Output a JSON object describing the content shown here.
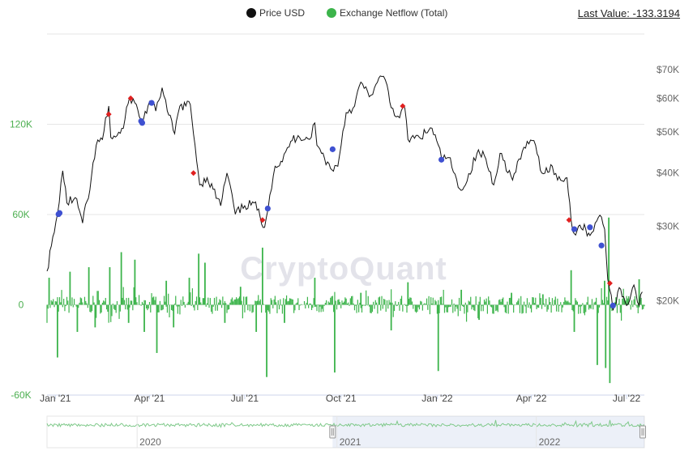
{
  "legend": {
    "price_label": "Price USD",
    "netflow_label": "Exchange Netflow (Total)",
    "last_value": "Last Value: -133.3194"
  },
  "watermark": "CryptoQuant",
  "colors": {
    "price": "#111111",
    "netflow": "#3cb44b",
    "left_axis_text": "#4caf50",
    "right_axis_text": "#666666",
    "buy_marker": "#3f51d1",
    "sell_marker": "#e02020",
    "grid": "#e6e6e6"
  },
  "chart_data": {
    "type": "line",
    "x_range": [
      "2020-12-24",
      "2022-07-18"
    ],
    "x_ticks": [
      {
        "label": "Jan '21",
        "date": "2021-01-01"
      },
      {
        "label": "Apr '21",
        "date": "2021-04-01"
      },
      {
        "label": "Jul '21",
        "date": "2021-07-01"
      },
      {
        "label": "Oct '21",
        "date": "2021-10-01"
      },
      {
        "label": "Jan '22",
        "date": "2022-01-01"
      },
      {
        "label": "Apr '22",
        "date": "2022-04-01"
      },
      {
        "label": "Jul '22",
        "date": "2022-07-01"
      }
    ],
    "left_axis": {
      "ylim": [
        -60000,
        180000
      ],
      "ticks": [
        -60000,
        0,
        60000,
        120000
      ],
      "labels": [
        "-60K",
        "0",
        "60K",
        "120K"
      ]
    },
    "right_axis": {
      "scale": "log",
      "ylim": [
        12000,
        85000
      ],
      "ticks": [
        20000,
        30000,
        40000,
        50000,
        60000,
        70000
      ],
      "labels": [
        "$20K",
        "$30K",
        "$40K",
        "$50K",
        "$60K",
        "$70K"
      ]
    },
    "price_series": {
      "name": "Price USD",
      "points": [
        [
          "2020-12-24",
          23500
        ],
        [
          "2020-12-31",
          29000
        ],
        [
          "2021-01-03",
          32000
        ],
        [
          "2021-01-08",
          40500
        ],
        [
          "2021-01-12",
          34000
        ],
        [
          "2021-01-20",
          35000
        ],
        [
          "2021-01-27",
          30500
        ],
        [
          "2021-02-03",
          36500
        ],
        [
          "2021-02-09",
          46500
        ],
        [
          "2021-02-15",
          48000
        ],
        [
          "2021-02-21",
          57500
        ],
        [
          "2021-02-23",
          48500
        ],
        [
          "2021-03-01",
          49000
        ],
        [
          "2021-03-07",
          51000
        ],
        [
          "2021-03-13",
          60500
        ],
        [
          "2021-03-18",
          58500
        ],
        [
          "2021-03-25",
          52500
        ],
        [
          "2021-04-01",
          59000
        ],
        [
          "2021-04-07",
          56000
        ],
        [
          "2021-04-13",
          63500
        ],
        [
          "2021-04-18",
          56000
        ],
        [
          "2021-04-25",
          49500
        ],
        [
          "2021-04-30",
          57500
        ],
        [
          "2021-05-10",
          58000
        ],
        [
          "2021-05-13",
          49500
        ],
        [
          "2021-05-19",
          37500
        ],
        [
          "2021-05-26",
          39000
        ],
        [
          "2021-06-08",
          33500
        ],
        [
          "2021-06-14",
          40000
        ],
        [
          "2021-06-22",
          32000
        ],
        [
          "2021-07-01",
          33500
        ],
        [
          "2021-07-10",
          34000
        ],
        [
          "2021-07-20",
          29800
        ],
        [
          "2021-07-25",
          35500
        ],
        [
          "2021-07-30",
          41500
        ],
        [
          "2021-08-06",
          42500
        ],
        [
          "2021-08-14",
          47500
        ],
        [
          "2021-08-21",
          49000
        ],
        [
          "2021-09-01",
          48000
        ],
        [
          "2021-09-06",
          52500
        ],
        [
          "2021-09-08",
          46500
        ],
        [
          "2021-09-21",
          41000
        ],
        [
          "2021-09-28",
          41500
        ],
        [
          "2021-10-06",
          55500
        ],
        [
          "2021-10-14",
          57500
        ],
        [
          "2021-10-20",
          65500
        ],
        [
          "2021-10-28",
          60500
        ],
        [
          "2021-11-02",
          63500
        ],
        [
          "2021-11-09",
          67500
        ],
        [
          "2021-11-14",
          64500
        ],
        [
          "2021-11-18",
          57000
        ],
        [
          "2021-11-26",
          54000
        ],
        [
          "2021-12-01",
          57000
        ],
        [
          "2021-12-04",
          48000
        ],
        [
          "2021-12-15",
          48500
        ],
        [
          "2021-12-27",
          51000
        ],
        [
          "2022-01-05",
          43500
        ],
        [
          "2022-01-12",
          43500
        ],
        [
          "2022-01-21",
          37000
        ],
        [
          "2022-01-28",
          37500
        ],
        [
          "2022-02-08",
          44500
        ],
        [
          "2022-02-15",
          44000
        ],
        [
          "2022-02-24",
          37500
        ],
        [
          "2022-03-02",
          44500
        ],
        [
          "2022-03-14",
          38500
        ],
        [
          "2022-03-28",
          47500
        ],
        [
          "2022-04-05",
          46500
        ],
        [
          "2022-04-11",
          40000
        ],
        [
          "2022-04-21",
          41500
        ],
        [
          "2022-04-26",
          38500
        ],
        [
          "2022-05-05",
          39000
        ],
        [
          "2022-05-09",
          31000
        ],
        [
          "2022-05-12",
          28800
        ],
        [
          "2022-05-16",
          30000
        ],
        [
          "2022-05-23",
          29500
        ],
        [
          "2022-05-27",
          28500
        ],
        [
          "2022-06-01",
          30500
        ],
        [
          "2022-06-07",
          31500
        ],
        [
          "2022-06-10",
          29500
        ],
        [
          "2022-06-13",
          22500
        ],
        [
          "2022-06-18",
          19000
        ],
        [
          "2022-06-24",
          21500
        ],
        [
          "2022-07-01",
          19500
        ],
        [
          "2022-07-08",
          21800
        ],
        [
          "2022-07-13",
          19500
        ],
        [
          "2022-07-16",
          21000
        ]
      ]
    },
    "signals": {
      "buy": [
        [
          "2021-01-04",
          32000
        ],
        [
          "2021-01-05",
          32200
        ],
        [
          "2021-03-24",
          53000
        ],
        [
          "2021-03-25",
          52500
        ],
        [
          "2021-04-03",
          58500
        ],
        [
          "2021-07-23",
          33000
        ],
        [
          "2021-09-23",
          45500
        ],
        [
          "2022-01-05",
          43000
        ],
        [
          "2022-05-12",
          29500
        ],
        [
          "2022-05-27",
          29800
        ],
        [
          "2022-06-07",
          27000
        ],
        [
          "2022-06-18",
          19500
        ]
      ],
      "sell": [
        [
          "2021-02-21",
          55000
        ],
        [
          "2021-03-14",
          60000
        ],
        [
          "2021-05-13",
          40000
        ],
        [
          "2021-07-18",
          31000
        ],
        [
          "2021-11-29",
          57500
        ],
        [
          "2022-05-07",
          31000
        ],
        [
          "2022-06-15",
          22000
        ]
      ]
    },
    "netflow_series": {
      "name": "Exchange Netflow (Total)",
      "points": [
        [
          "2020-12-26",
          18000
        ],
        [
          "2021-01-03",
          -35000
        ],
        [
          "2021-01-15",
          22000
        ],
        [
          "2021-01-22",
          -18000
        ],
        [
          "2021-02-02",
          25000
        ],
        [
          "2021-02-08",
          -15000
        ],
        [
          "2021-02-22",
          25000
        ],
        [
          "2021-03-05",
          35000
        ],
        [
          "2021-03-12",
          -12000
        ],
        [
          "2021-03-18",
          30000
        ],
        [
          "2021-03-27",
          -18000
        ],
        [
          "2021-04-08",
          -32000
        ],
        [
          "2021-04-17",
          16000
        ],
        [
          "2021-04-24",
          -15000
        ],
        [
          "2021-05-09",
          18000
        ],
        [
          "2021-05-18",
          34000
        ],
        [
          "2021-05-24",
          28000
        ],
        [
          "2021-06-12",
          -12000
        ],
        [
          "2021-06-27",
          12000
        ],
        [
          "2021-07-12",
          -18000
        ],
        [
          "2021-07-18",
          38000
        ],
        [
          "2021-07-22",
          -48000
        ],
        [
          "2021-08-08",
          -12000
        ],
        [
          "2021-09-06",
          18000
        ],
        [
          "2021-09-25",
          -45000
        ],
        [
          "2021-10-20",
          8000
        ],
        [
          "2021-11-18",
          -17000
        ],
        [
          "2021-12-04",
          15000
        ],
        [
          "2022-01-02",
          -44000
        ],
        [
          "2022-01-24",
          10000
        ],
        [
          "2022-02-10",
          -10000
        ],
        [
          "2022-03-13",
          8000
        ],
        [
          "2022-04-12",
          7000
        ],
        [
          "2022-05-09",
          23000
        ],
        [
          "2022-05-12",
          -18000
        ],
        [
          "2022-06-03",
          -40000
        ],
        [
          "2022-06-10",
          16000
        ],
        [
          "2022-06-11",
          -42000
        ],
        [
          "2022-06-14",
          58000
        ],
        [
          "2022-06-15",
          -52000
        ],
        [
          "2022-06-21",
          5000
        ],
        [
          "2022-07-13",
          17000
        ],
        [
          "2022-07-16",
          -133.3194
        ]
      ]
    },
    "navigator": {
      "labels": [
        {
          "label": "2020",
          "date": "2020-01-01"
        },
        {
          "label": "2021",
          "date": "2021-01-01"
        },
        {
          "label": "2022",
          "date": "2022-01-01"
        }
      ],
      "selected_range": [
        "2020-12-24",
        "2022-07-18"
      ]
    }
  }
}
